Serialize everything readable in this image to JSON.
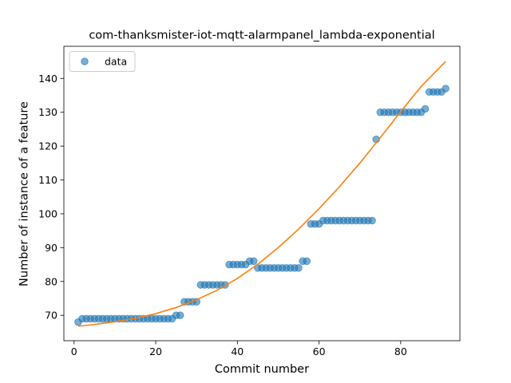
{
  "chart_data": {
    "type": "scatter",
    "title": "com-thanksmister-iot-mqtt-alarmpanel_lambda-exponential",
    "xlabel": "Commit number",
    "ylabel": "Number of instance of a feature",
    "xlim": [
      -2.5,
      94.5
    ],
    "ylim": [
      62.5,
      149.5
    ],
    "xticks": [
      0,
      20,
      40,
      60,
      80
    ],
    "yticks": [
      70,
      80,
      90,
      100,
      110,
      120,
      130,
      140
    ],
    "legend": {
      "position": "top-left",
      "entries": [
        {
          "label": "data"
        }
      ]
    },
    "colors": {
      "data": "#1f77b4",
      "fit": "#ff7f0e"
    },
    "series": [
      {
        "name": "data",
        "kind": "scatter",
        "x": [
          1,
          2,
          3,
          4,
          5,
          6,
          7,
          8,
          9,
          10,
          11,
          12,
          13,
          14,
          15,
          16,
          17,
          18,
          19,
          20,
          21,
          22,
          23,
          24,
          25,
          26,
          27,
          28,
          29,
          30,
          31,
          32,
          33,
          34,
          35,
          36,
          37,
          38,
          39,
          40,
          41,
          42,
          43,
          44,
          45,
          46,
          47,
          48,
          49,
          50,
          51,
          52,
          53,
          54,
          55,
          56,
          57,
          58,
          59,
          60,
          61,
          62,
          63,
          64,
          65,
          66,
          67,
          68,
          69,
          70,
          71,
          72,
          73,
          74,
          75,
          76,
          77,
          78,
          79,
          80,
          81,
          82,
          83,
          84,
          85,
          86,
          87,
          88,
          89,
          90,
          91
        ],
        "y": [
          68,
          69,
          69,
          69,
          69,
          69,
          69,
          69,
          69,
          69,
          69,
          69,
          69,
          69,
          69,
          69,
          69,
          69,
          69,
          69,
          69,
          69,
          69,
          69,
          70,
          70,
          74,
          74,
          74,
          74,
          79,
          79,
          79,
          79,
          79,
          79,
          79,
          85,
          85,
          85,
          85,
          85,
          86,
          86,
          84,
          84,
          84,
          84,
          84,
          84,
          84,
          84,
          84,
          84,
          84,
          86,
          86,
          97,
          97,
          97,
          98,
          98,
          98,
          98,
          98,
          98,
          98,
          98,
          98,
          98,
          98,
          98,
          98,
          122,
          130,
          130,
          130,
          130,
          130,
          130,
          130,
          130,
          130,
          130,
          130,
          131,
          136,
          136,
          136,
          136,
          137
        ]
      },
      {
        "name": "fit",
        "kind": "line",
        "x": [
          1,
          5,
          10,
          15,
          20,
          25,
          30,
          35,
          40,
          45,
          50,
          55,
          60,
          65,
          70,
          75,
          80,
          85,
          91
        ],
        "y": [
          66.8,
          67.3,
          68.1,
          69.1,
          70.5,
          72.3,
          74.6,
          77.4,
          80.9,
          85.1,
          90.0,
          95.5,
          101.5,
          108.0,
          115.0,
          122.5,
          130.2,
          137.6,
          145.0
        ]
      }
    ]
  }
}
